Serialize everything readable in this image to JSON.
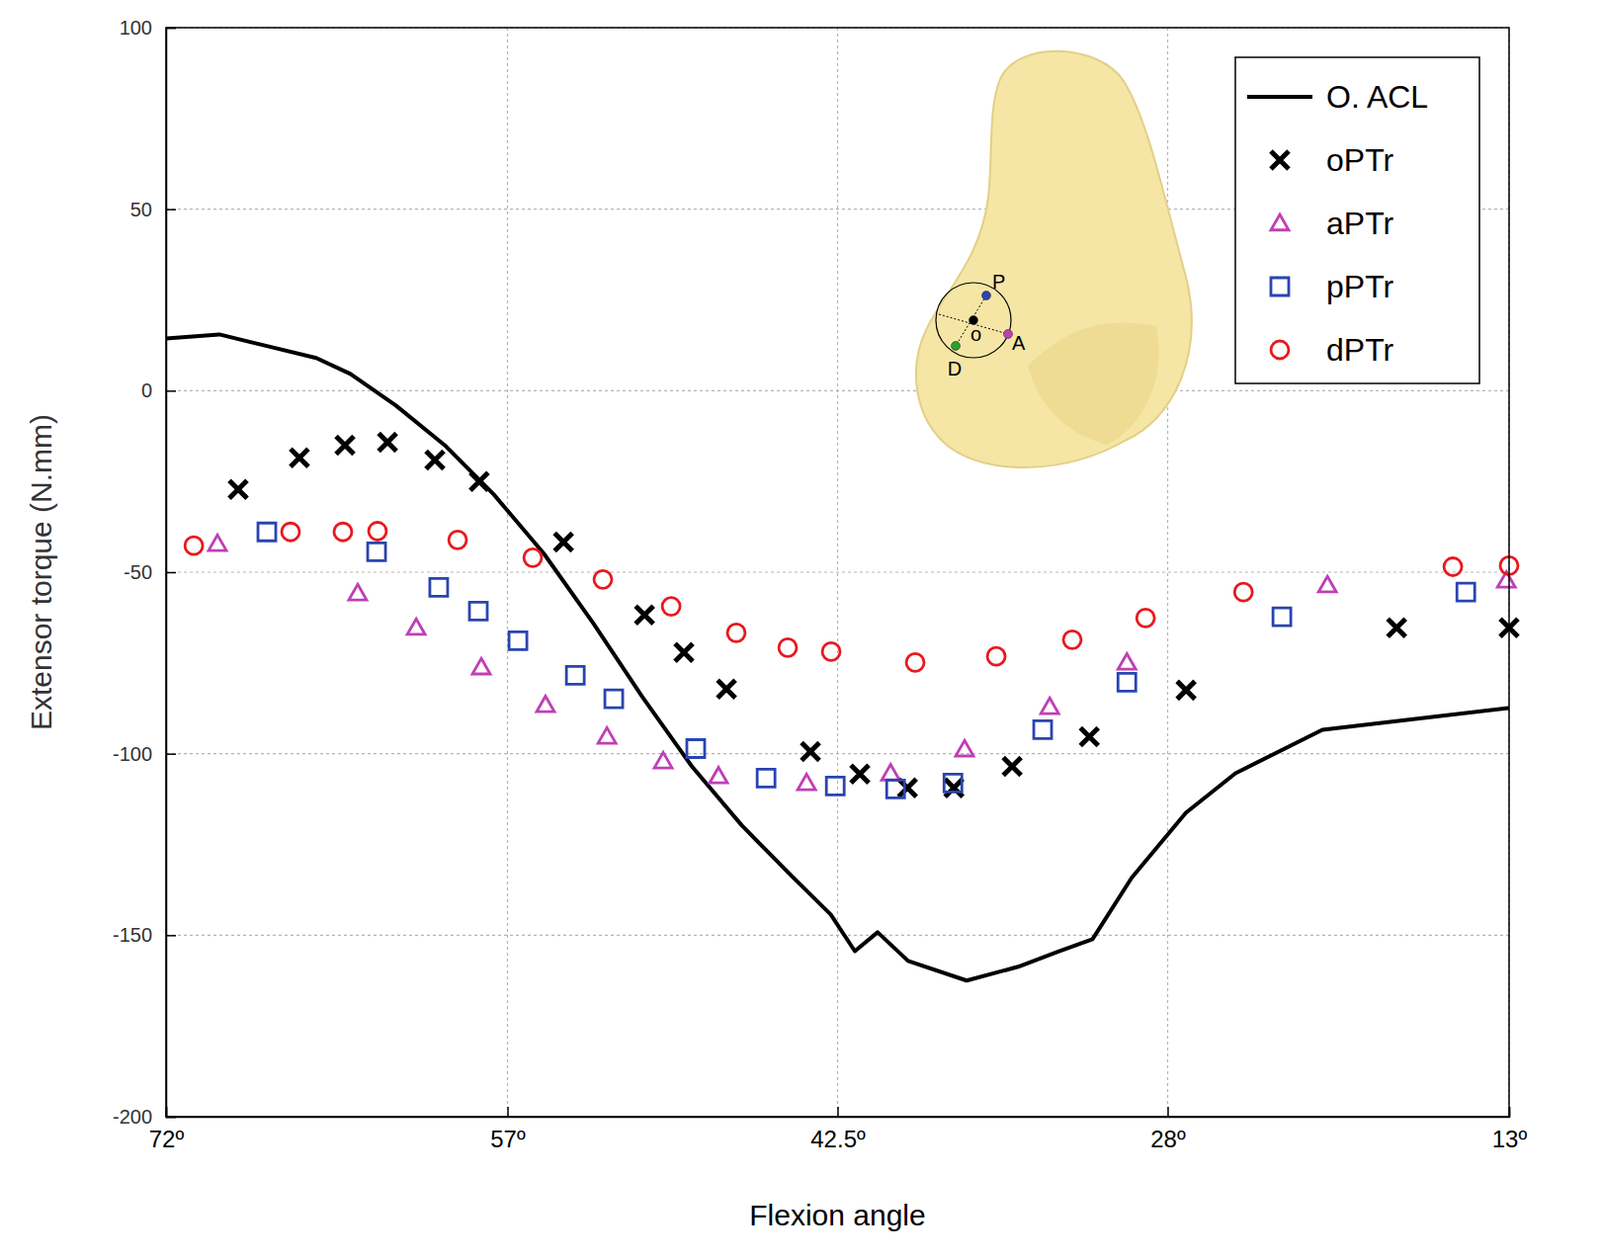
{
  "chart_data": {
    "type": "line",
    "x_label": "Flexion angle",
    "y_label": "Extensor torque (N.mm)",
    "xlim": [
      72,
      13
    ],
    "ylim": [
      -200,
      100
    ],
    "xticks": [
      {
        "value": 72,
        "label": "72º"
      },
      {
        "value": 57,
        "label": "57º"
      },
      {
        "value": 42.5,
        "label": "42.5º"
      },
      {
        "value": 28,
        "label": "28º"
      },
      {
        "value": 13,
        "label": "13º"
      }
    ],
    "yticks": [
      -200,
      -150,
      -100,
      -50,
      0,
      50,
      100
    ],
    "grid": true,
    "legend": "upper right",
    "annotations": [
      "P",
      "o",
      "A",
      "D"
    ],
    "series": [
      {
        "name": "O. ACL",
        "type": "line",
        "color": "#000000",
        "line_style": "solid",
        "x": [
          72,
          69.66,
          67.57,
          65.4,
          63.9,
          61.9,
          59.76,
          57.6,
          55.4,
          53.24,
          51.07,
          48.9,
          46.7,
          44.56,
          42.8,
          41.74,
          40.74,
          39.4,
          36.83,
          34.57,
          32.83,
          31.3,
          29.58,
          27.2,
          25.02,
          21.2,
          13
        ],
        "values": [
          14.4,
          15.5,
          12.3,
          9.0,
          4.6,
          -4.1,
          -15,
          -28.6,
          -44.9,
          -64,
          -84.4,
          -103.5,
          -119.8,
          -133.4,
          -144.3,
          -154.4,
          -149.2,
          -157.1,
          -162.5,
          -158.7,
          -154.6,
          -151.1,
          -134.2,
          -116.3,
          -105.4,
          -93.4,
          -87.4
        ]
      },
      {
        "name": "oPTr",
        "type": "scatter",
        "color": "#000000",
        "marker": "x",
        "x": [
          68.83,
          66.14,
          64.14,
          62.27,
          60.19,
          58.24,
          54.54,
          50.98,
          49.25,
          47.38,
          43.69,
          41.52,
          39.43,
          37.39,
          34.83,
          31.44,
          27.19,
          17.94,
          13
        ],
        "values": [
          -27.2,
          -18.5,
          -15,
          -14.2,
          -19.1,
          -25,
          -41.7,
          -61.8,
          -72.1,
          -82.2,
          -99.4,
          -105.6,
          -109.4,
          -109.4,
          -103.5,
          -95.3,
          -82.5,
          -65.3,
          -65.3
        ]
      },
      {
        "name": "aPTr",
        "type": "scatter",
        "color": "#c03fb5",
        "marker": "triangle",
        "x": [
          69.74,
          63.58,
          61.01,
          58.15,
          55.33,
          52.63,
          50.16,
          47.73,
          43.86,
          40.17,
          36.92,
          33.18,
          29.79,
          20.98,
          13.12
        ],
        "values": [
          -42.2,
          -55.8,
          -65.3,
          -76.2,
          -86.6,
          -95.3,
          -102.1,
          -106.2,
          -108.1,
          -105.4,
          -98.8,
          -87.1,
          -74.9,
          -53.6,
          -52.3
        ]
      },
      {
        "name": "pPTr",
        "type": "scatter",
        "color": "#2a44b0",
        "marker": "square",
        "x": [
          67.57,
          62.75,
          60.02,
          58.28,
          56.54,
          54.02,
          52.33,
          48.73,
          45.64,
          42.6,
          39.95,
          37.43,
          33.49,
          29.79,
          22.98,
          14.9
        ],
        "values": [
          -38.9,
          -44.4,
          -54.2,
          -60.7,
          -68.9,
          -78.4,
          -84.9,
          -98.6,
          -106.7,
          -108.9,
          -109.7,
          -108.1,
          -93.4,
          -80.3,
          -62.3,
          -55.5
        ]
      },
      {
        "name": "dPTr",
        "type": "scatter",
        "color": "#e8191e",
        "marker": "circle",
        "x": [
          70.78,
          66.53,
          64.23,
          62.71,
          59.19,
          55.89,
          52.81,
          49.81,
          46.95,
          44.69,
          42.78,
          39.09,
          35.53,
          32.19,
          28.97,
          24.67,
          15.47,
          13
        ],
        "values": [
          -42.7,
          -38.9,
          -38.9,
          -38.7,
          -41.1,
          -46,
          -52,
          -59.4,
          -66.7,
          -70.8,
          -71.9,
          -74.9,
          -73.2,
          -68.6,
          -62.6,
          -55.5,
          -48.5,
          -48.2
        ]
      }
    ]
  }
}
